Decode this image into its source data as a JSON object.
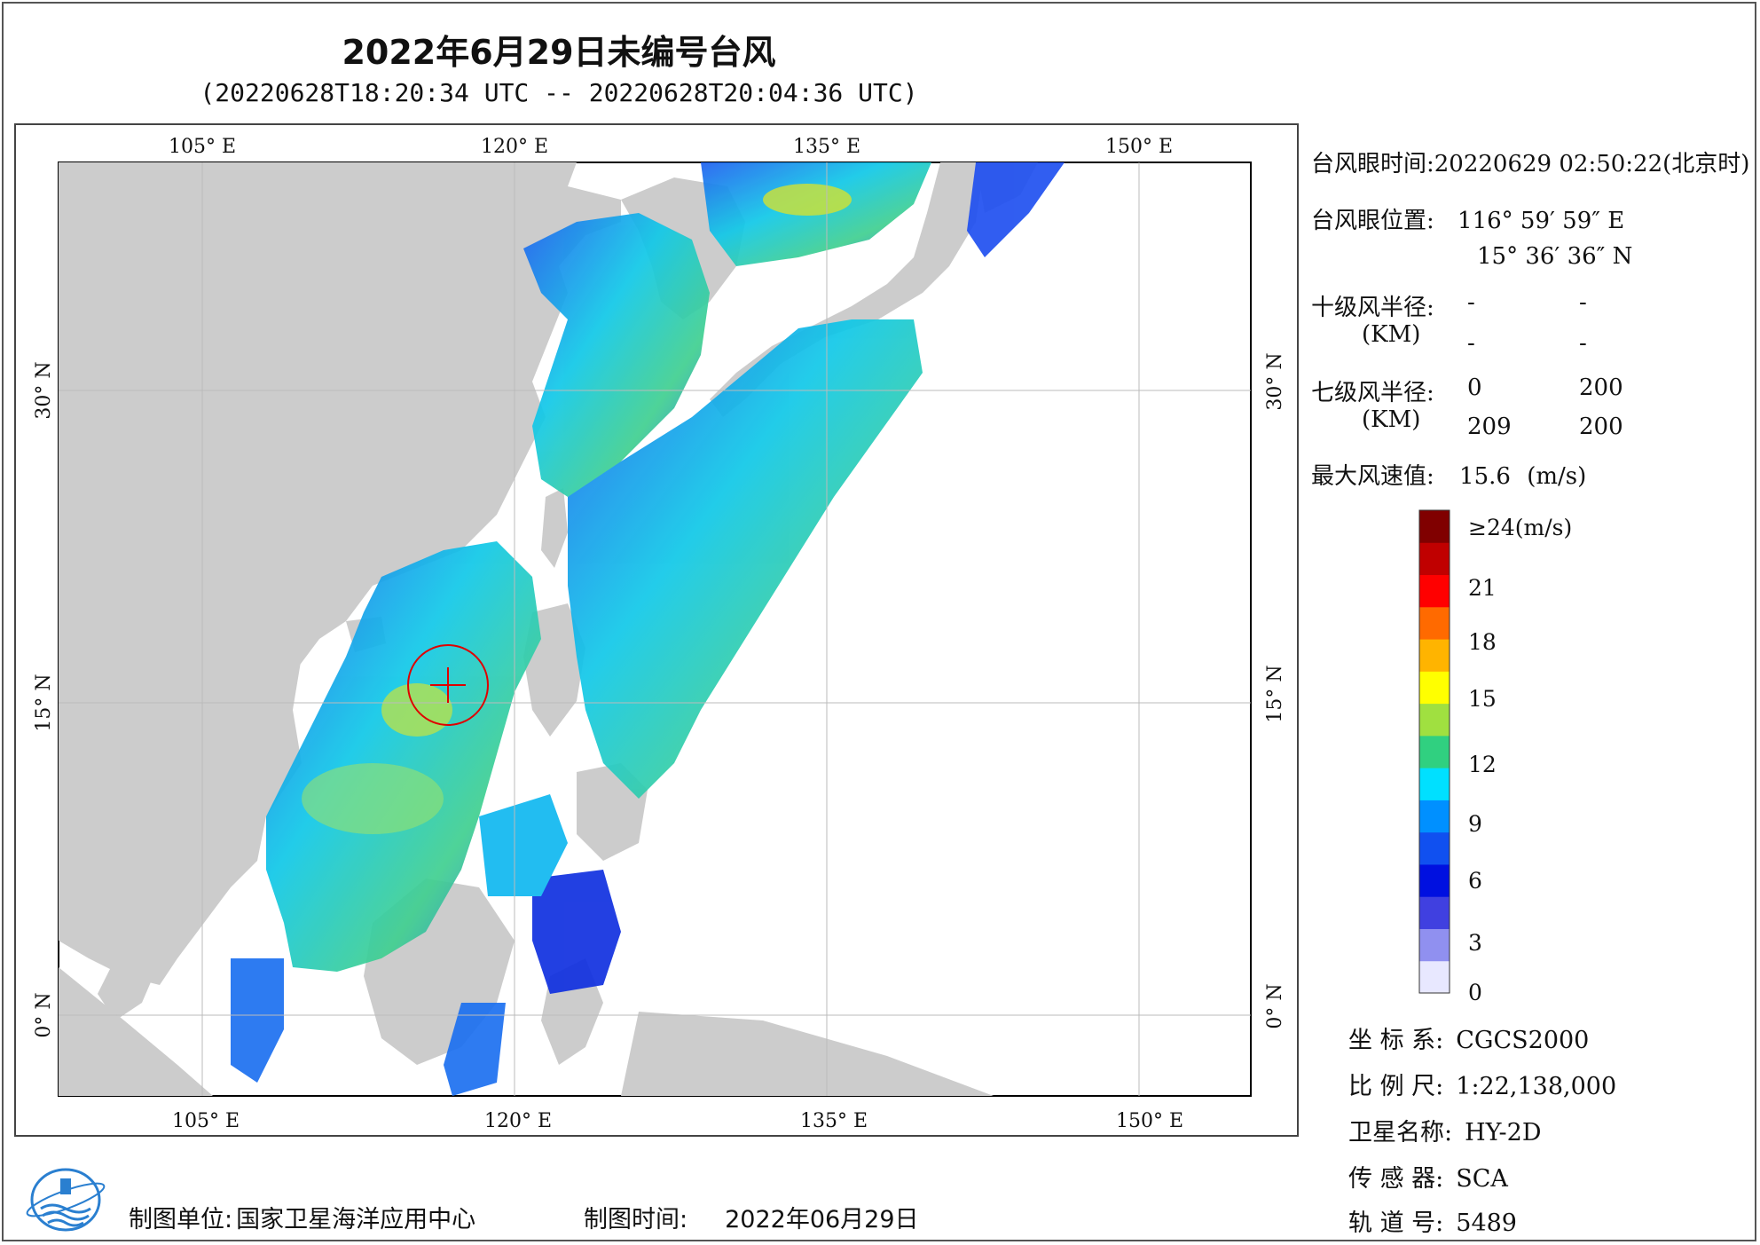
{
  "title": "2022年6月29日未编号台风",
  "subtitle": "(20220628T18:20:34 UTC -- 20220628T20:04:36 UTC)",
  "map": {
    "lon_top": [
      "105° E",
      "120° E",
      "135° E",
      "150° E"
    ],
    "lon_bottom": [
      "105° E",
      "120° E",
      "135° E",
      "150° E"
    ],
    "lat_left": [
      "30° N",
      "15° N",
      "0° N"
    ],
    "lat_right": [
      "30° N",
      "15° N",
      "0° N"
    ],
    "land_color": "#cccccc",
    "ocean_color": "#ffffff",
    "typhoon_marker_color": "#e00000"
  },
  "info": {
    "eye_time_label": "台风眼时间:",
    "eye_time_value": "20220629 02:50:22(北京时)",
    "eye_pos_label": "台风眼位置:",
    "eye_lon": "116° 59′ 59″ E",
    "eye_lat": "15° 36′ 36″ N",
    "r10_label": "十级风半径:",
    "r10_unit": "(KM)",
    "r10_values": [
      "-",
      "-",
      "-",
      "-"
    ],
    "r7_label": "七级风半径:",
    "r7_unit": "(KM)",
    "r7_values": [
      "0",
      "200",
      "209",
      "200"
    ],
    "max_wind_label": "最大风速值:",
    "max_wind_value": "15.6",
    "max_wind_unit": "(m/s)"
  },
  "colorbar": {
    "labels": [
      "≥24(m/s)",
      "21",
      "18",
      "15",
      "12",
      "9",
      "6",
      "3",
      "0"
    ],
    "colors": [
      "#800000",
      "#c00000",
      "#ff0000",
      "#ff6a00",
      "#ffb400",
      "#ffff00",
      "#a0e040",
      "#30d080",
      "#00e0ff",
      "#0090ff",
      "#1050f0",
      "#0010e0",
      "#4040e0",
      "#9090f0",
      "#e8e8ff"
    ]
  },
  "meta": {
    "crs_label": "坐 标 系:",
    "crs_value": "CGCS2000",
    "scale_label": "比 例 尺:",
    "scale_value": "1:22,138,000",
    "sat_label": "卫星名称:",
    "sat_value": "HY-2D",
    "sensor_label": "传 感 器:",
    "sensor_value": "SCA",
    "orbit_label": "轨 道 号:",
    "orbit_value": "5489"
  },
  "footer": {
    "unit_label": "制图单位:",
    "unit_value": "国家卫星海洋应用中心",
    "time_label": "制图时间:",
    "time_value": "2022年06月29日"
  }
}
